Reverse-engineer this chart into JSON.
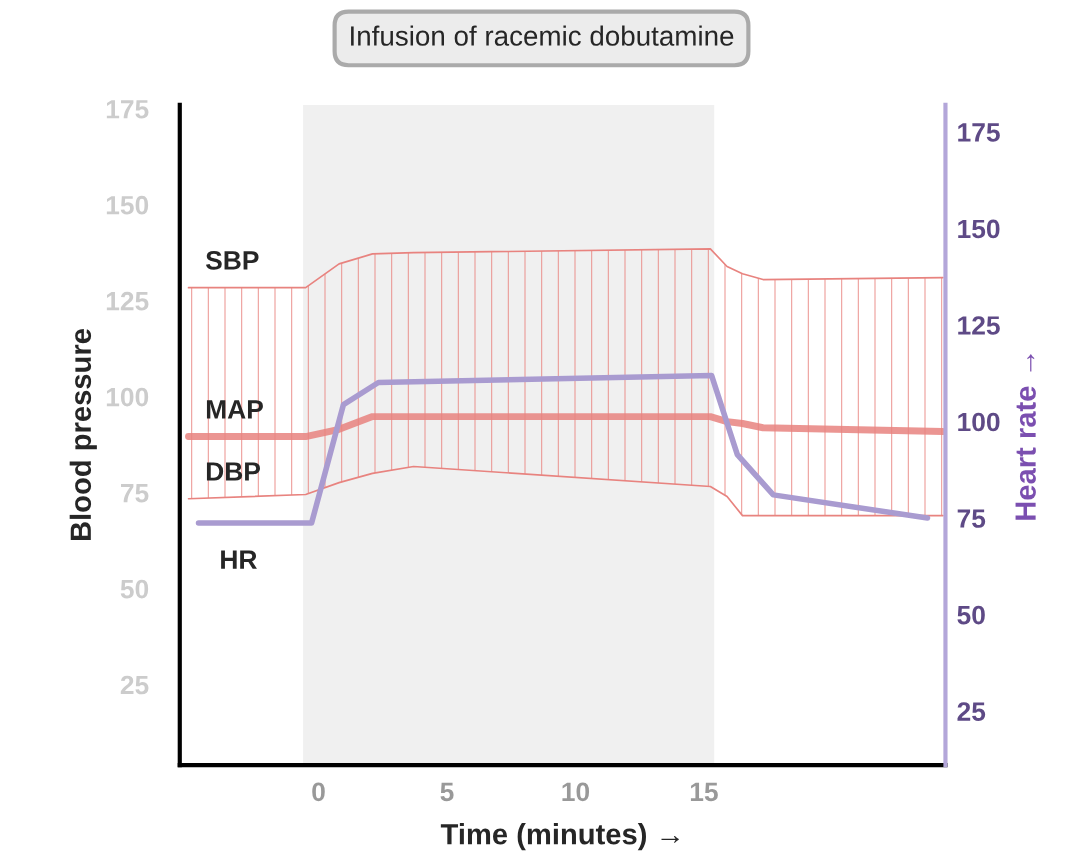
{
  "chart_data": {
    "type": "line",
    "title": "Infusion of racemic dobutamine",
    "xlabel": "Time (minutes) →",
    "ylabel": "Blood pressure",
    "y2label": "Heart rate →",
    "xlim": [
      -5.4,
      24.4
    ],
    "xticks": [
      0,
      5,
      10,
      15
    ],
    "ylim": [
      4,
      176
    ],
    "yticks": [
      25,
      50,
      75,
      100,
      125,
      150,
      175
    ],
    "y2lim": [
      11,
      182
    ],
    "y2ticks": [
      25,
      50,
      75,
      100,
      125,
      150,
      175
    ],
    "series": [
      {
        "name": "MAP",
        "color": "#e8837f",
        "x": [
          -5.06,
          -0.5,
          0.8,
          2.1,
          3.7,
          15.25,
          15.9,
          16.5,
          17.3,
          24.3
        ],
        "values": [
          89.6,
          89.6,
          91.5,
          94.8,
          94.8,
          94.8,
          93.5,
          93,
          91.9,
          90.9
        ],
        "lower": [
          73.4,
          74.5,
          77.6,
          80,
          81.8,
          76.6,
          74,
          69,
          69,
          69
        ],
        "upper": [
          128.4,
          128.4,
          134.6,
          137.2,
          137.5,
          138.5,
          133.9,
          132,
          130.5,
          131
        ]
      },
      {
        "name": "SBP",
        "color": "#e8837f",
        "x": [
          -5.06,
          -0.5,
          0.8,
          2.1,
          3.7,
          15.25,
          15.9,
          16.5,
          17.3,
          24.3
        ],
        "values": [
          128.4,
          128.4,
          134.6,
          137.2,
          137.5,
          138.5,
          133.9,
          132,
          130.5,
          131
        ]
      },
      {
        "name": "DBP",
        "color": "#e8837f",
        "x": [
          -5.06,
          -0.5,
          0.8,
          2.1,
          3.7,
          15.25,
          15.9,
          16.5,
          17.3,
          24.3
        ],
        "values": [
          73.4,
          74.5,
          77.6,
          80,
          81.8,
          76.6,
          74,
          69,
          69,
          69
        ]
      },
      {
        "name": "HR",
        "color": "#a99bd0",
        "axis": "y2",
        "x": [
          -4.67,
          -0.27,
          0.97,
          2.33,
          15.3,
          16.3,
          17.7,
          23.7
        ],
        "values": [
          73.7,
          73.7,
          104.4,
          110.1,
          111.9,
          91.4,
          81,
          75
        ]
      }
    ],
    "bands": [
      {
        "axis": "x",
        "from": -0.6,
        "to": 15.4,
        "color": "#f0f0f0"
      }
    ],
    "grid": false,
    "legend": false
  }
}
